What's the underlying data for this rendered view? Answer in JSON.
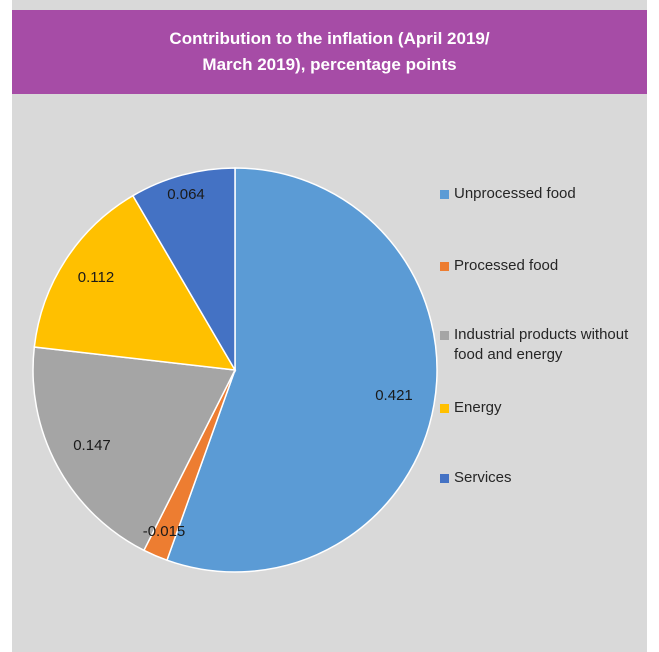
{
  "chart_data": {
    "type": "pie",
    "title": "Contribution to the inflation (April 2019/ March 2019), percentage points",
    "title_lines": [
      "Contribution to the inflation (April 2019/",
      "March 2019), percentage points"
    ],
    "slices": [
      {
        "name": "Unprocessed food",
        "value": 0.421,
        "label": "0.421",
        "color": "#5b9bd5"
      },
      {
        "name": "Processed food",
        "value": -0.015,
        "label": "-0.015",
        "color": "#ed7d31"
      },
      {
        "name": "Industrial products without food and energy",
        "value": 0.147,
        "label": "0.147",
        "color": "#a5a5a5"
      },
      {
        "name": "Energy",
        "value": 0.112,
        "label": "0.112",
        "color": "#ffc000"
      },
      {
        "name": "Services",
        "value": 0.064,
        "label": "0.064",
        "color": "#4472c4"
      }
    ],
    "legend_placement": "right"
  }
}
